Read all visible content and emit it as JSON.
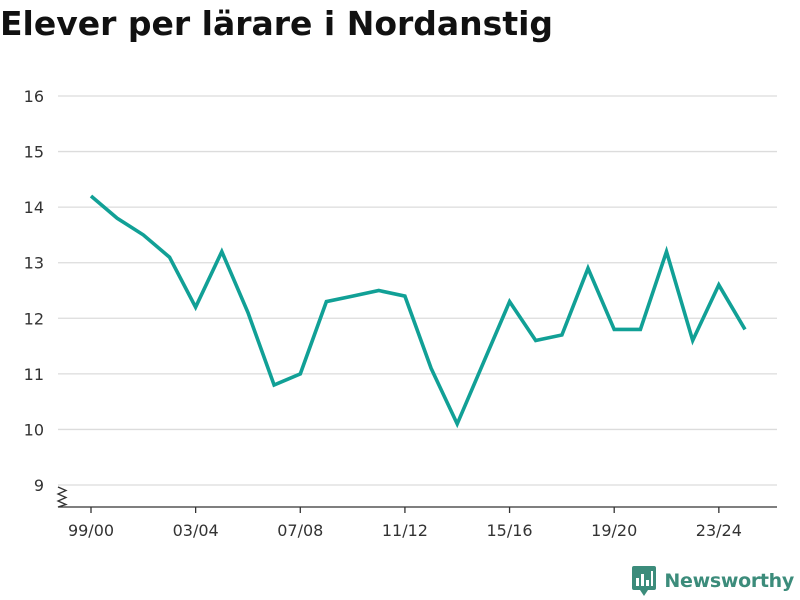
{
  "chart_data": {
    "type": "line",
    "title": "Elever per lärare i Nordanstig",
    "xlabel": "",
    "ylabel": "",
    "x": [
      "99/00",
      "00/01",
      "01/02",
      "02/03",
      "03/04",
      "04/05",
      "05/06",
      "06/07",
      "07/08",
      "08/09",
      "09/10",
      "10/11",
      "11/12",
      "12/13",
      "13/14",
      "14/15",
      "15/16",
      "16/17",
      "17/18",
      "18/19",
      "19/20",
      "20/21",
      "21/22",
      "22/23",
      "23/24",
      "24/25"
    ],
    "xticks": [
      "99/00",
      "03/04",
      "07/08",
      "11/12",
      "15/16",
      "19/20",
      "23/24"
    ],
    "yticks": [
      9,
      10,
      11,
      12,
      13,
      14,
      15,
      16
    ],
    "ylim": [
      9,
      16
    ],
    "y_axis_break": true,
    "grid": true,
    "series": [
      {
        "color": "#11a096",
        "values": [
          14.2,
          13.8,
          13.5,
          13.1,
          12.2,
          13.2,
          12.1,
          10.8,
          11.0,
          12.3,
          12.4,
          12.5,
          12.4,
          11.1,
          10.1,
          11.2,
          12.3,
          11.6,
          11.7,
          12.9,
          11.8,
          11.8,
          13.2,
          11.6,
          12.6,
          11.8
        ]
      }
    ]
  },
  "brand": {
    "name": "Newsworthy",
    "color": "#3c8c7b"
  }
}
